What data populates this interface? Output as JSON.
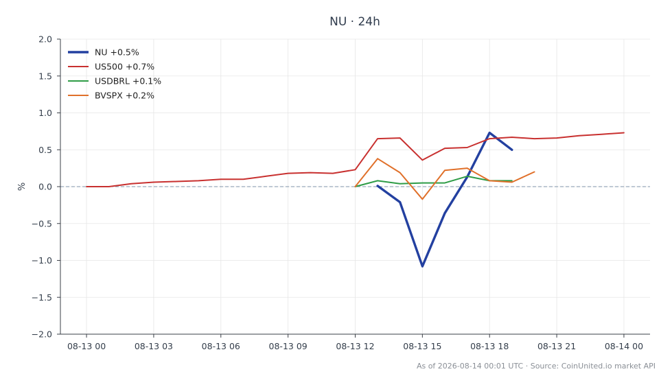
{
  "chart_data": {
    "type": "line",
    "title": "NU · 24h",
    "xlabel": "",
    "ylabel": "%",
    "ylim": [
      -2.0,
      2.0
    ],
    "yticks": [
      -2.0,
      -1.5,
      -1.0,
      -0.5,
      0.0,
      0.5,
      1.0,
      1.5,
      2.0
    ],
    "ytick_labels": [
      "−2.0",
      "−1.5",
      "−1.0",
      "−0.5",
      "0.0",
      "0.5",
      "1.0",
      "1.5",
      "2.0"
    ],
    "xlim": [
      "2026-08-12 22:50",
      "2026-08-14 01:10"
    ],
    "xticks": [
      "2026-08-13 00:00",
      "2026-08-13 03:00",
      "2026-08-13 06:00",
      "2026-08-13 09:00",
      "2026-08-13 12:00",
      "2026-08-13 15:00",
      "2026-08-13 18:00",
      "2026-08-13 21:00",
      "2026-08-14 00:00"
    ],
    "xtick_labels": [
      "08-13 00",
      "08-13 03",
      "08-13 06",
      "08-13 09",
      "08-13 12",
      "08-13 15",
      "08-13 18",
      "08-13 21",
      "08-14 00"
    ],
    "grid": true,
    "baseline": 0.0,
    "legend_position": "top-left",
    "series": [
      {
        "name": "NU +0.5%",
        "color": "#2340a0",
        "x": [
          "2026-08-13 13:00",
          "2026-08-13 14:00",
          "2026-08-13 15:00",
          "2026-08-13 16:00",
          "2026-08-13 17:00",
          "2026-08-13 18:00",
          "2026-08-13 19:00"
        ],
        "values": [
          0.01,
          -0.21,
          -1.08,
          -0.36,
          0.13,
          0.73,
          0.5
        ]
      },
      {
        "name": "US500 +0.7%",
        "color": "#c8302f",
        "x": [
          "2026-08-13 00:00",
          "2026-08-13 01:00",
          "2026-08-13 02:00",
          "2026-08-13 03:00",
          "2026-08-13 04:00",
          "2026-08-13 05:00",
          "2026-08-13 06:00",
          "2026-08-13 07:00",
          "2026-08-13 08:00",
          "2026-08-13 09:00",
          "2026-08-13 10:00",
          "2026-08-13 11:00",
          "2026-08-13 12:00",
          "2026-08-13 13:00",
          "2026-08-13 14:00",
          "2026-08-13 15:00",
          "2026-08-13 16:00",
          "2026-08-13 17:00",
          "2026-08-13 18:00",
          "2026-08-13 19:00",
          "2026-08-13 20:00",
          "2026-08-13 21:00",
          "2026-08-13 22:00",
          "2026-08-13 23:00",
          "2026-08-14 00:00"
        ],
        "values": [
          0.0,
          0.0,
          0.04,
          0.06,
          0.07,
          0.08,
          0.1,
          0.1,
          0.14,
          0.18,
          0.19,
          0.18,
          0.23,
          0.65,
          0.66,
          0.36,
          0.52,
          0.53,
          0.65,
          0.67,
          0.65,
          0.66,
          0.69,
          0.71,
          0.73
        ]
      },
      {
        "name": "USDBRL +0.1%",
        "color": "#2e9c46",
        "x": [
          "2026-08-13 12:00",
          "2026-08-13 13:00",
          "2026-08-13 14:00",
          "2026-08-13 15:00",
          "2026-08-13 16:00",
          "2026-08-13 17:00",
          "2026-08-13 18:00",
          "2026-08-13 19:00"
        ],
        "values": [
          0.0,
          0.08,
          0.04,
          0.05,
          0.05,
          0.14,
          0.08,
          0.08
        ]
      },
      {
        "name": "BVSPX +0.2%",
        "color": "#e0702a",
        "x": [
          "2026-08-13 12:00",
          "2026-08-13 13:00",
          "2026-08-13 14:00",
          "2026-08-13 15:00",
          "2026-08-13 16:00",
          "2026-08-13 17:00",
          "2026-08-13 18:00",
          "2026-08-13 19:00",
          "2026-08-13 20:00"
        ],
        "values": [
          0.0,
          0.38,
          0.19,
          -0.17,
          0.22,
          0.25,
          0.08,
          0.06,
          0.2
        ]
      }
    ],
    "footer": "As of 2026-08-14 00:01 UTC · Source: CoinUnited.io market API"
  }
}
